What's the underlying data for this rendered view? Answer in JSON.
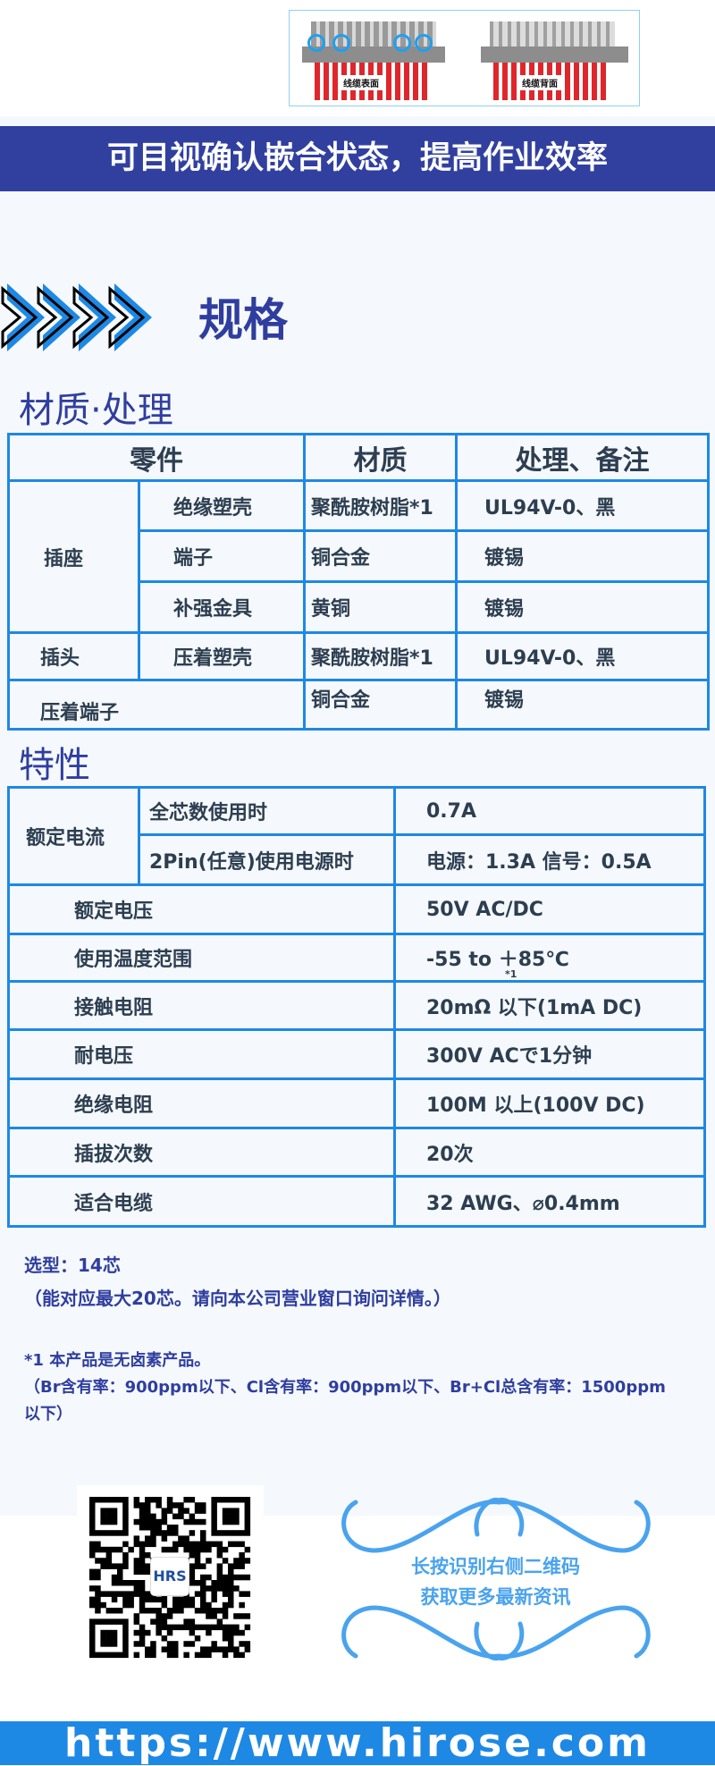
{
  "figure": {
    "front_label": "线缆表面",
    "back_label": "线缆背面"
  },
  "banner": "可目视确认嵌合状态，提高作业效率",
  "section_title": "规格",
  "materials": {
    "heading": "材质·处理",
    "headers": [
      "零件",
      "材质",
      "处理、备注"
    ],
    "receptacle": "插座",
    "plug": "插头",
    "rows": [
      {
        "part": "绝缘塑壳",
        "material": "聚酰胺树脂*1",
        "note": "UL94V-0、黑"
      },
      {
        "part": "端子",
        "material": "铜合金",
        "note": "镀锡"
      },
      {
        "part": "补强金具",
        "material": "黄铜",
        "note": "镀锡"
      },
      {
        "part": "压着塑壳",
        "material": "聚酰胺树脂*1",
        "note": "UL94V-0、黑"
      },
      {
        "part": "压着端子",
        "material": "铜合金",
        "note": "镀锡"
      }
    ]
  },
  "characteristics": {
    "heading": "特性",
    "rated_current": {
      "label": "额定电流",
      "rows": [
        {
          "cond": "全芯数使用时",
          "value": "0.7A"
        },
        {
          "cond": "2Pin(任意)使用电源时",
          "value": "电源：1.3A 信号：0.5A"
        }
      ]
    },
    "rows": [
      {
        "label": "额定电压",
        "value": "50V AC/DC"
      },
      {
        "label": "使用温度范围",
        "value": "-55 to ＋85℃",
        "footnote": "*1"
      },
      {
        "label": "接触电阻",
        "value": "20mΩ 以下(1mA DC)"
      },
      {
        "label": "耐电压",
        "value": "300V ACで1分钟"
      },
      {
        "label": "绝缘电阻",
        "value": "100M  以上(100V DC)"
      },
      {
        "label": "插拔次数",
        "value": "20次"
      },
      {
        "label": "适合电缆",
        "value": "32 AWG、⌀0.4mm"
      }
    ]
  },
  "notes": {
    "model": "选型：14芯",
    "model_sub": "（能对应最大20芯。请向本公司营业窗口询问详情。）",
    "fn1": "*1 本产品是无卤素产品。",
    "fn1_detail": "（Br含有率：900ppm以下、Cl含有率：900ppm以下、Br+Cl总含有率：1500ppm以下）"
  },
  "qr": {
    "logo_text": "HRS"
  },
  "promo": {
    "line1": "长按识别右侧二维码",
    "line2": "获取更多最新资讯"
  },
  "footer_url": "https://www.hirose.com",
  "colors": {
    "navy": "#31409f",
    "blue": "#1e88e5",
    "text": "#2d3e50",
    "light_blue": "#4aa3ee"
  }
}
